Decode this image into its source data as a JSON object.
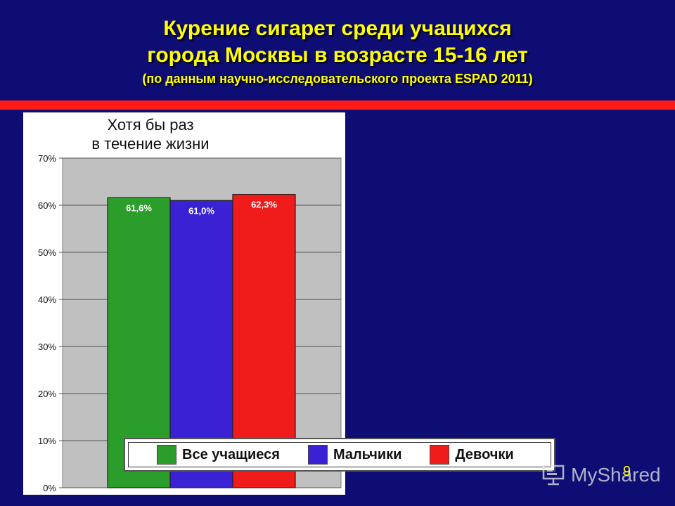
{
  "slide": {
    "title_line1": "Курение сигарет среди учащихся",
    "title_line2": "города Москвы в возрасте 15-16 лет",
    "subtitle": "(по данным научно-исследовательского проекта ESPAD 2011)",
    "page_number": "9"
  },
  "watermark": "MyShared",
  "colors": {
    "background": "#0d0d73",
    "title": "#ffff00",
    "band": "#ff1a1a"
  },
  "chart_data": {
    "type": "bar",
    "title_line1": "Хотя бы раз",
    "title_line2": "в течение жизни",
    "categories": [
      "Все учащиеся",
      "Мальчики",
      "Девочки"
    ],
    "values": [
      61.6,
      61.0,
      62.3
    ],
    "data_labels": [
      "61,6%",
      "61,0%",
      "62,3%"
    ],
    "colors": [
      "#2a9d2a",
      "#3a22d4",
      "#f01c1c"
    ],
    "label_colors": [
      "#ffffff",
      "#ffffff",
      "#ffffff"
    ],
    "ylim": [
      0,
      70
    ],
    "yticks": [
      {
        "value": 0,
        "label": "0%"
      },
      {
        "value": 10,
        "label": "10%"
      },
      {
        "value": 20,
        "label": "20%"
      },
      {
        "value": 30,
        "label": "30%"
      },
      {
        "value": 40,
        "label": "40%"
      },
      {
        "value": 50,
        "label": "50%"
      },
      {
        "value": 60,
        "label": "60%"
      },
      {
        "value": 70,
        "label": "70%"
      }
    ],
    "grid": true,
    "legend": "bottom"
  }
}
